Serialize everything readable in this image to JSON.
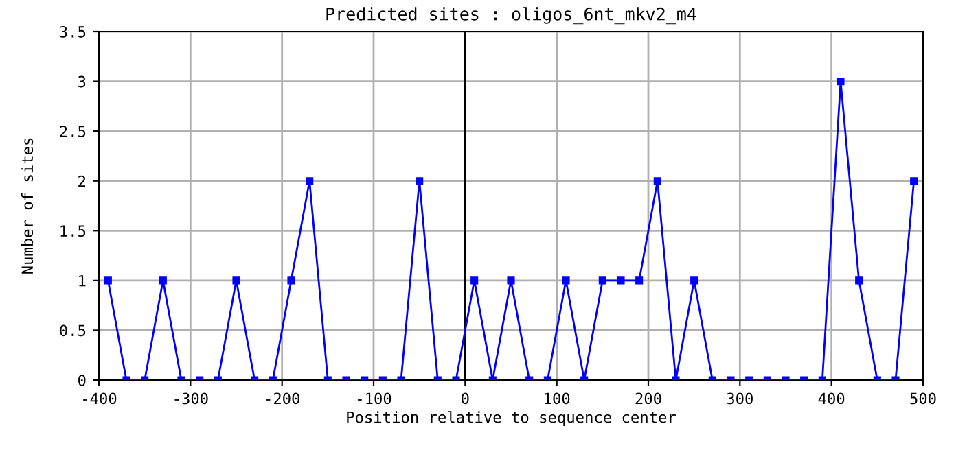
{
  "chart_data": {
    "type": "line",
    "title": "Predicted sites : oligos_6nt_mkv2_m4",
    "xlabel": "Position relative to sequence center",
    "ylabel": "Number of sites",
    "x": [
      -390,
      -370,
      -350,
      -330,
      -310,
      -290,
      -270,
      -250,
      -230,
      -210,
      -190,
      -170,
      -150,
      -130,
      -110,
      -90,
      -70,
      -50,
      -30,
      -10,
      10,
      30,
      50,
      70,
      90,
      110,
      130,
      150,
      170,
      190,
      210,
      230,
      250,
      270,
      290,
      310,
      330,
      350,
      370,
      390,
      410,
      430,
      450,
      470,
      490
    ],
    "series": [
      {
        "color": "#0000ff",
        "values": [
          1,
          0,
          0,
          1,
          0,
          0,
          0,
          1,
          0,
          0,
          1,
          2,
          0,
          0,
          0,
          0,
          0,
          2,
          0,
          0,
          1,
          0,
          1,
          0,
          0,
          1,
          0,
          1,
          1,
          1,
          2,
          0,
          1,
          0,
          0,
          0,
          0,
          0,
          0,
          0,
          3,
          1,
          0,
          0,
          2
        ]
      }
    ],
    "xlim": [
      -400,
      500
    ],
    "xticks": [
      -400,
      -300,
      -200,
      -100,
      0,
      100,
      200,
      300,
      400,
      500
    ],
    "ylim": [
      0,
      3.5
    ],
    "yticks": [
      0,
      0.5,
      1,
      1.5,
      2,
      2.5,
      3,
      3.5
    ],
    "grid": true,
    "marker": "square",
    "line_style": "solid",
    "ref_lines": [
      {
        "axis": "x",
        "value": 0,
        "color": "#000000"
      }
    ]
  }
}
